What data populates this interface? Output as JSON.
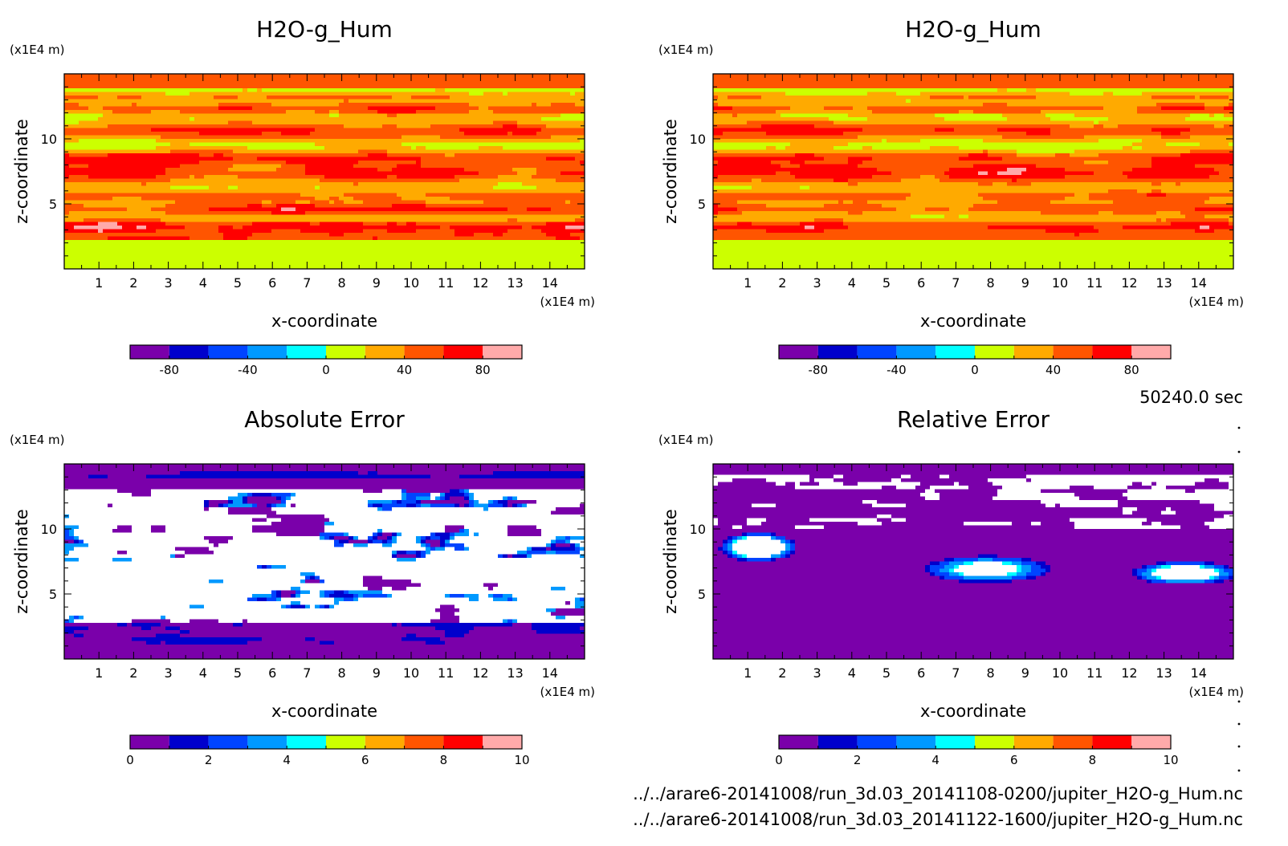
{
  "chart_data": [
    {
      "type": "heatmap",
      "title": "H2O-g_Hum",
      "xlabel": "x-coordinate",
      "ylabel": "z-coordinate",
      "x_unit": "(x1E4 m)",
      "y_unit": "(x1E4 m)",
      "xlim": [
        0,
        15
      ],
      "ylim": [
        0,
        15
      ],
      "x_ticks": [
        "1",
        "2",
        "3",
        "4",
        "5",
        "6",
        "7",
        "8",
        "9",
        "10",
        "11",
        "12",
        "13",
        "14"
      ],
      "y_ticks": [
        "5",
        "10"
      ],
      "colorbar": {
        "colors": [
          "#7a00aa",
          "#0000cc",
          "#0044ff",
          "#0099ff",
          "#00ffff",
          "#ccff00",
          "#ffaa00",
          "#ff5500",
          "#ff0000",
          "#ffaaaa"
        ],
        "levels": [
          -100,
          -80,
          -60,
          -40,
          -20,
          0,
          20,
          40,
          60,
          80,
          100
        ],
        "tick_labels": [
          "-80",
          "-40",
          "0",
          "40",
          "80"
        ]
      }
    },
    {
      "type": "heatmap",
      "title": "H2O-g_Hum",
      "xlabel": "x-coordinate",
      "ylabel": "z-coordinate",
      "x_unit": "(x1E4 m)",
      "y_unit": "(x1E4 m)",
      "xlim": [
        0,
        15
      ],
      "ylim": [
        0,
        15
      ],
      "x_ticks": [
        "1",
        "2",
        "3",
        "4",
        "5",
        "6",
        "7",
        "8",
        "9",
        "10",
        "11",
        "12",
        "13",
        "14"
      ],
      "y_ticks": [
        "5",
        "10"
      ],
      "colorbar": {
        "colors": [
          "#7a00aa",
          "#0000cc",
          "#0044ff",
          "#0099ff",
          "#00ffff",
          "#ccff00",
          "#ffaa00",
          "#ff5500",
          "#ff0000",
          "#ffaaaa"
        ],
        "levels": [
          -100,
          -80,
          -60,
          -40,
          -20,
          0,
          20,
          40,
          60,
          80,
          100
        ],
        "tick_labels": [
          "-80",
          "-40",
          "0",
          "40",
          "80"
        ]
      }
    },
    {
      "type": "heatmap",
      "title": "Absolute Error",
      "xlabel": "x-coordinate",
      "ylabel": "z-coordinate",
      "x_unit": "(x1E4 m)",
      "y_unit": "(x1E4 m)",
      "xlim": [
        0,
        15
      ],
      "ylim": [
        0,
        15
      ],
      "x_ticks": [
        "1",
        "2",
        "3",
        "4",
        "5",
        "6",
        "7",
        "8",
        "9",
        "10",
        "11",
        "12",
        "13",
        "14"
      ],
      "y_ticks": [
        "5",
        "10"
      ],
      "colorbar": {
        "colors": [
          "#7a00aa",
          "#0000cc",
          "#0044ff",
          "#0099ff",
          "#00ffff",
          "#ccff00",
          "#ffaa00",
          "#ff5500",
          "#ff0000",
          "#ffaaaa"
        ],
        "levels": [
          0,
          1,
          2,
          3,
          4,
          5,
          6,
          7,
          8,
          9,
          10
        ],
        "tick_labels": [
          "0",
          "2",
          "4",
          "6",
          "8",
          "10"
        ]
      }
    },
    {
      "type": "heatmap",
      "title": "Relative Error",
      "xlabel": "x-coordinate",
      "ylabel": "z-coordinate",
      "x_unit": "(x1E4 m)",
      "y_unit": "(x1E4 m)",
      "xlim": [
        0,
        15
      ],
      "ylim": [
        0,
        15
      ],
      "x_ticks": [
        "1",
        "2",
        "3",
        "4",
        "5",
        "6",
        "7",
        "8",
        "9",
        "10",
        "11",
        "12",
        "13",
        "14"
      ],
      "y_ticks": [
        "5",
        "10"
      ],
      "colorbar": {
        "colors": [
          "#7a00aa",
          "#0000cc",
          "#0044ff",
          "#0099ff",
          "#00ffff",
          "#ccff00",
          "#ffaa00",
          "#ff5500",
          "#ff0000",
          "#ffaaaa"
        ],
        "levels": [
          0,
          1,
          2,
          3,
          4,
          5,
          6,
          7,
          8,
          9,
          10
        ],
        "tick_labels": [
          "0",
          "2",
          "4",
          "6",
          "8",
          "10"
        ]
      }
    }
  ],
  "time_label": "50240.0 sec",
  "file_paths": [
    "../../arare6-20141008/run_3d.03_20141108-0200/jupiter_H2O-g_Hum.nc",
    "../../arare6-20141008/run_3d.03_20141122-1600/jupiter_H2O-g_Hum.nc"
  ]
}
